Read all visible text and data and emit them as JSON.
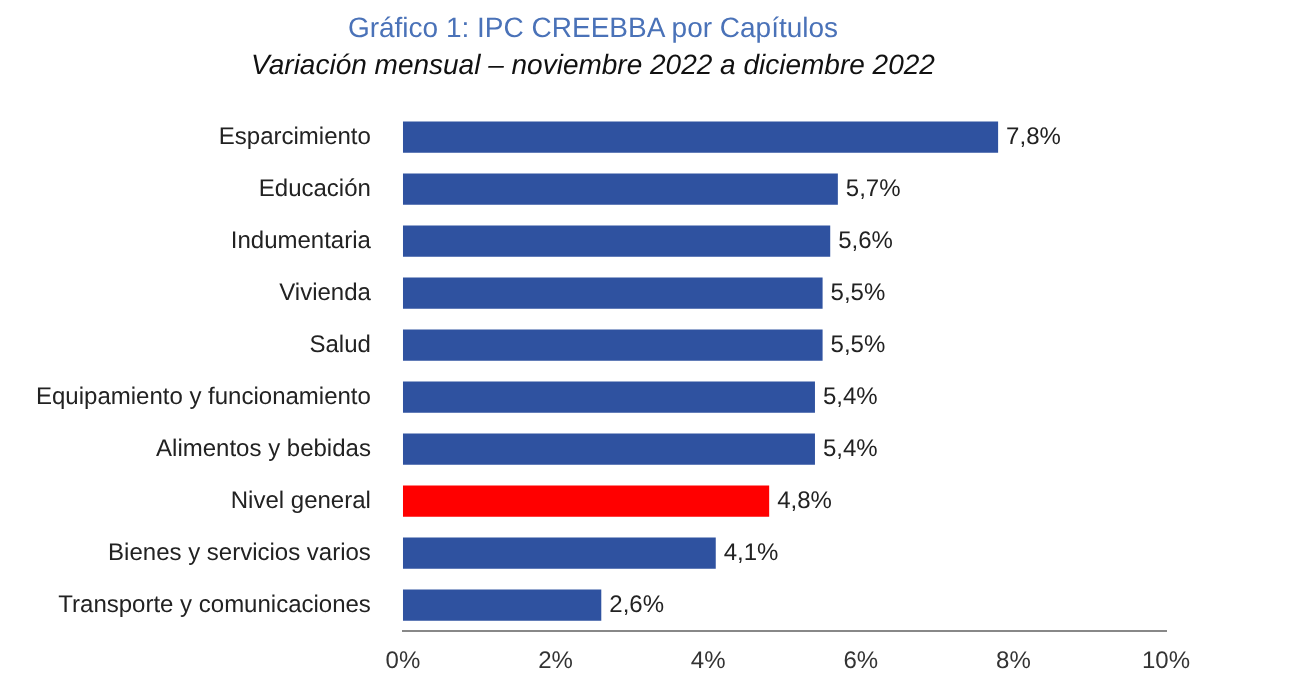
{
  "chart_data": {
    "type": "bar",
    "orientation": "horizontal",
    "title": "Gráfico 1: IPC CREEBBA por Capítulos",
    "subtitle": "Variación mensual – noviembre 2022 a diciembre 2022",
    "categories": [
      "Esparcimiento",
      "Educación",
      "Indumentaria",
      "Vivienda",
      "Salud",
      "Equipamiento y funcionamiento",
      "Alimentos y bebidas",
      "Nivel general",
      "Bienes y servicios varios",
      "Transporte y comunicaciones"
    ],
    "values": [
      7.8,
      5.7,
      5.6,
      5.5,
      5.5,
      5.4,
      5.4,
      4.8,
      4.1,
      2.6
    ],
    "colors": [
      "#2f52a0",
      "#2f52a0",
      "#2f52a0",
      "#2f52a0",
      "#2f52a0",
      "#2f52a0",
      "#2f52a0",
      "#ff0000",
      "#2f52a0",
      "#2f52a0"
    ],
    "value_labels": [
      "7,8%",
      "5,7%",
      "5,6%",
      "5,5%",
      "5,5%",
      "5,4%",
      "5,4%",
      "4,8%",
      "4,1%",
      "2,6%"
    ],
    "xlim": [
      0,
      10
    ],
    "xticks": [
      {
        "value": 0,
        "label": "0%"
      },
      {
        "value": 2,
        "label": "2%"
      },
      {
        "value": 4,
        "label": "4%"
      },
      {
        "value": 6,
        "label": "6%"
      },
      {
        "value": 8,
        "label": "8%"
      },
      {
        "value": 10,
        "label": "10%"
      }
    ],
    "grid": false,
    "legend": false
  }
}
